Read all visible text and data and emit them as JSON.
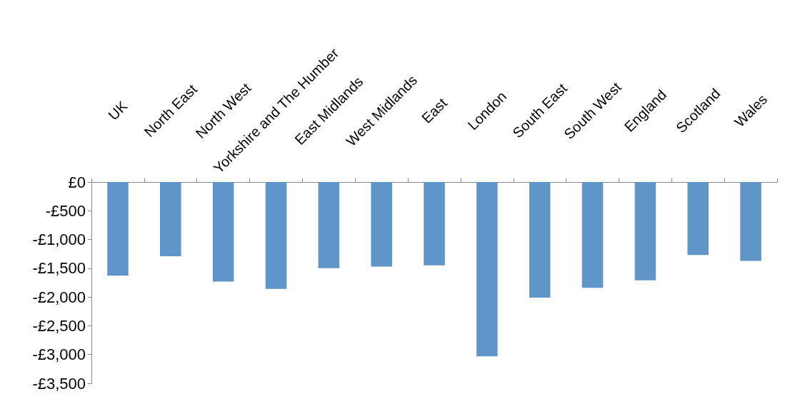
{
  "chart_data": {
    "type": "bar",
    "categories": [
      "UK",
      "North East",
      "North West",
      "Yorkshire and The Humber",
      "East Midlands",
      "West Midlands",
      "East",
      "London",
      "South East",
      "South West",
      "England",
      "Scotland",
      "Wales"
    ],
    "values": [
      -1630,
      -1290,
      -1730,
      -1860,
      -1500,
      -1470,
      -1450,
      -3030,
      -2010,
      -1840,
      -1710,
      -1270,
      -1370
    ],
    "color": "#5f95c8",
    "ylim": [
      -3500,
      0
    ],
    "yticks": [
      {
        "value": 0,
        "label": "£0"
      },
      {
        "value": -500,
        "label": "-£500"
      },
      {
        "value": -1000,
        "label": "-£1,000"
      },
      {
        "value": -1500,
        "label": "-£1,500"
      },
      {
        "value": -2000,
        "label": "-£2,000"
      },
      {
        "value": -2500,
        "label": "-£2,500"
      },
      {
        "value": -3000,
        "label": "-£3,000"
      },
      {
        "value": -3500,
        "label": "-£3,500"
      }
    ],
    "grid": false
  }
}
